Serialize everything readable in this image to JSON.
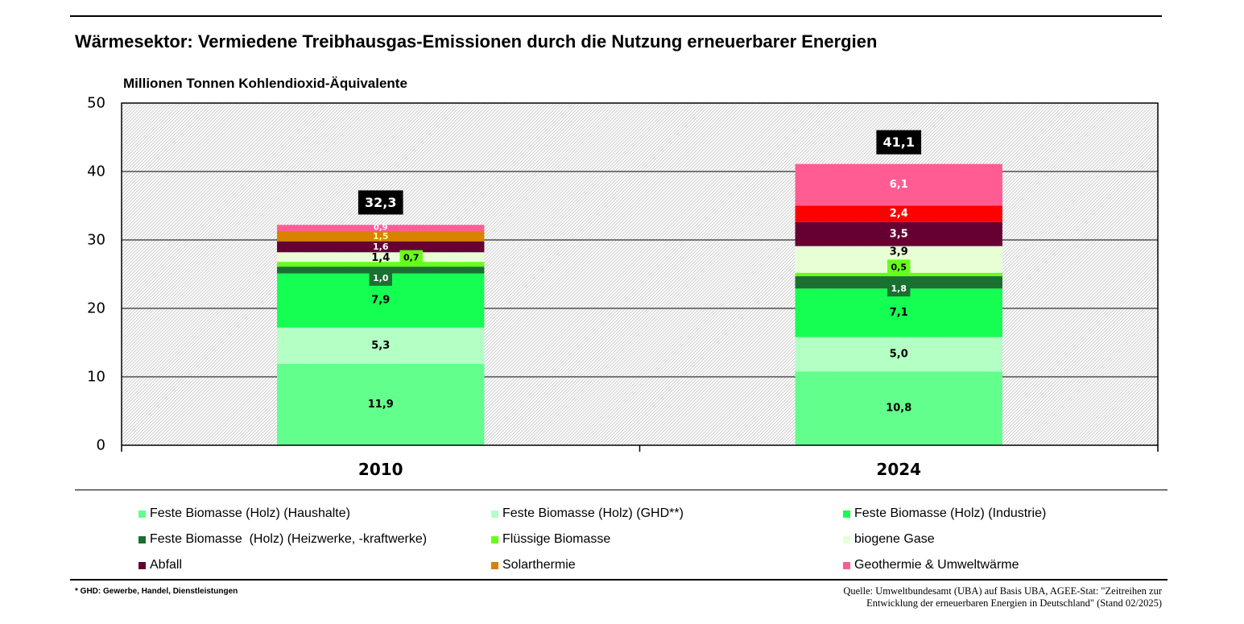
{
  "title": "Wärmesektor: Vermiedene Treibhausgas-Emissionen durch die Nutzung erneuerbarer Energien",
  "chart_data": {
    "type": "bar",
    "stacked": true,
    "ylabel": "Millionen Tonnen Kohlendioxid-Äquivalente",
    "ylim": [
      0,
      50
    ],
    "yticks": [
      0,
      10,
      20,
      30,
      40,
      50
    ],
    "grid": true,
    "legend_position": "bottom",
    "categories": [
      "2010",
      "2024"
    ],
    "totals": [
      32.3,
      41.1
    ],
    "total_labels": [
      "32,3",
      "41,1"
    ],
    "series": [
      {
        "name": "Feste Biomasse (Holz) (Haushalte)",
        "values": [
          11.9,
          10.8
        ],
        "labels": [
          "11,9",
          "10,8"
        ],
        "color": "#63ff8c"
      },
      {
        "name": "Feste Biomasse (Holz) (GHD**)",
        "values": [
          5.3,
          5.0
        ],
        "labels": [
          "5,3",
          "5,0"
        ],
        "color": "#b3ffc4"
      },
      {
        "name": "Feste Biomasse (Holz) (Industrie)",
        "values": [
          7.9,
          7.1
        ],
        "labels": [
          "7,9",
          "7,1"
        ],
        "color": "#14ff52"
      },
      {
        "name": "Feste Biomasse  (Holz) (Heizwerke, -kraftwerke)",
        "values": [
          1.0,
          1.8
        ],
        "labels": [
          "1,0",
          "1,8"
        ],
        "color": "#1a7030"
      },
      {
        "name": "Flüssige Biomasse",
        "values": [
          0.7,
          0.5
        ],
        "labels": [
          "0,7",
          "0,5"
        ],
        "color": "#66ff1a"
      },
      {
        "name": "biogene Gase",
        "values": [
          1.4,
          3.9
        ],
        "labels": [
          "1,4",
          "3,9"
        ],
        "color": "#e8ffd6"
      },
      {
        "name": "Abfall",
        "values": [
          1.6,
          3.5
        ],
        "labels": [
          "1,6",
          "3,5"
        ],
        "color": "#660033"
      },
      {
        "name": "Solarthermie",
        "values": [
          1.5,
          2.4
        ],
        "labels": [
          "1,5",
          "2,4"
        ],
        "color": "#d98200",
        "bar_colors": [
          "#d98200",
          "#ff0000"
        ]
      },
      {
        "name": "Geothermie & Umweltwärme",
        "values": [
          0.9,
          6.1
        ],
        "labels": [
          "0,9",
          "6,1"
        ],
        "color": "#ff5c93"
      }
    ]
  },
  "footnote": "* GHD: Gewerbe, Handel, Dienstleistungen",
  "source": [
    "Quelle: Umweltbundesamt (UBA) auf Basis UBA, AGEE-Stat: \"Zeitreihen zur",
    "Entwicklung der erneuerbaren Energien in Deutschland\" (Stand 02/2025)"
  ]
}
